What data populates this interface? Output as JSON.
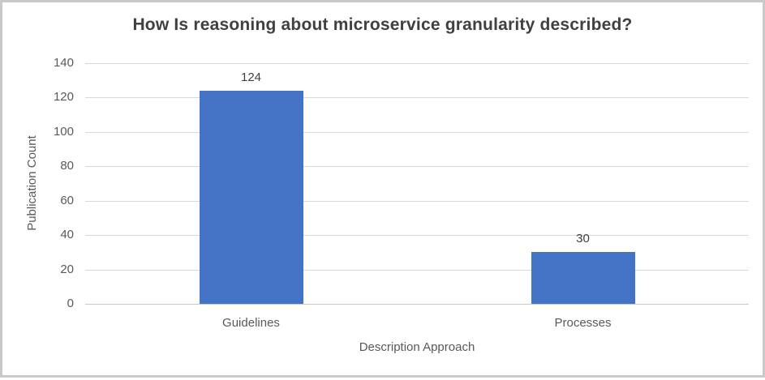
{
  "chart_data": {
    "type": "bar",
    "title": "How Is reasoning about microservice granularity described?",
    "xlabel": "Description Approach",
    "ylabel": "Publication Count",
    "categories": [
      "Guidelines",
      "Processes"
    ],
    "values": [
      124,
      30
    ],
    "data_labels": [
      "124",
      "30"
    ],
    "yticks": [
      0,
      20,
      40,
      60,
      80,
      100,
      120,
      140
    ],
    "ylim": [
      0,
      140
    ],
    "grid": "horizontal",
    "legend_position": "none",
    "colors": {
      "bar": "#4472C4",
      "title_text": "#404040",
      "axis_text": "#595959",
      "data_label_text": "#404040",
      "gridline": "#D9D9D9",
      "axis_line": "#C8C8C8",
      "frame_border": "#C9C9C9",
      "background": "#FFFFFF"
    }
  }
}
